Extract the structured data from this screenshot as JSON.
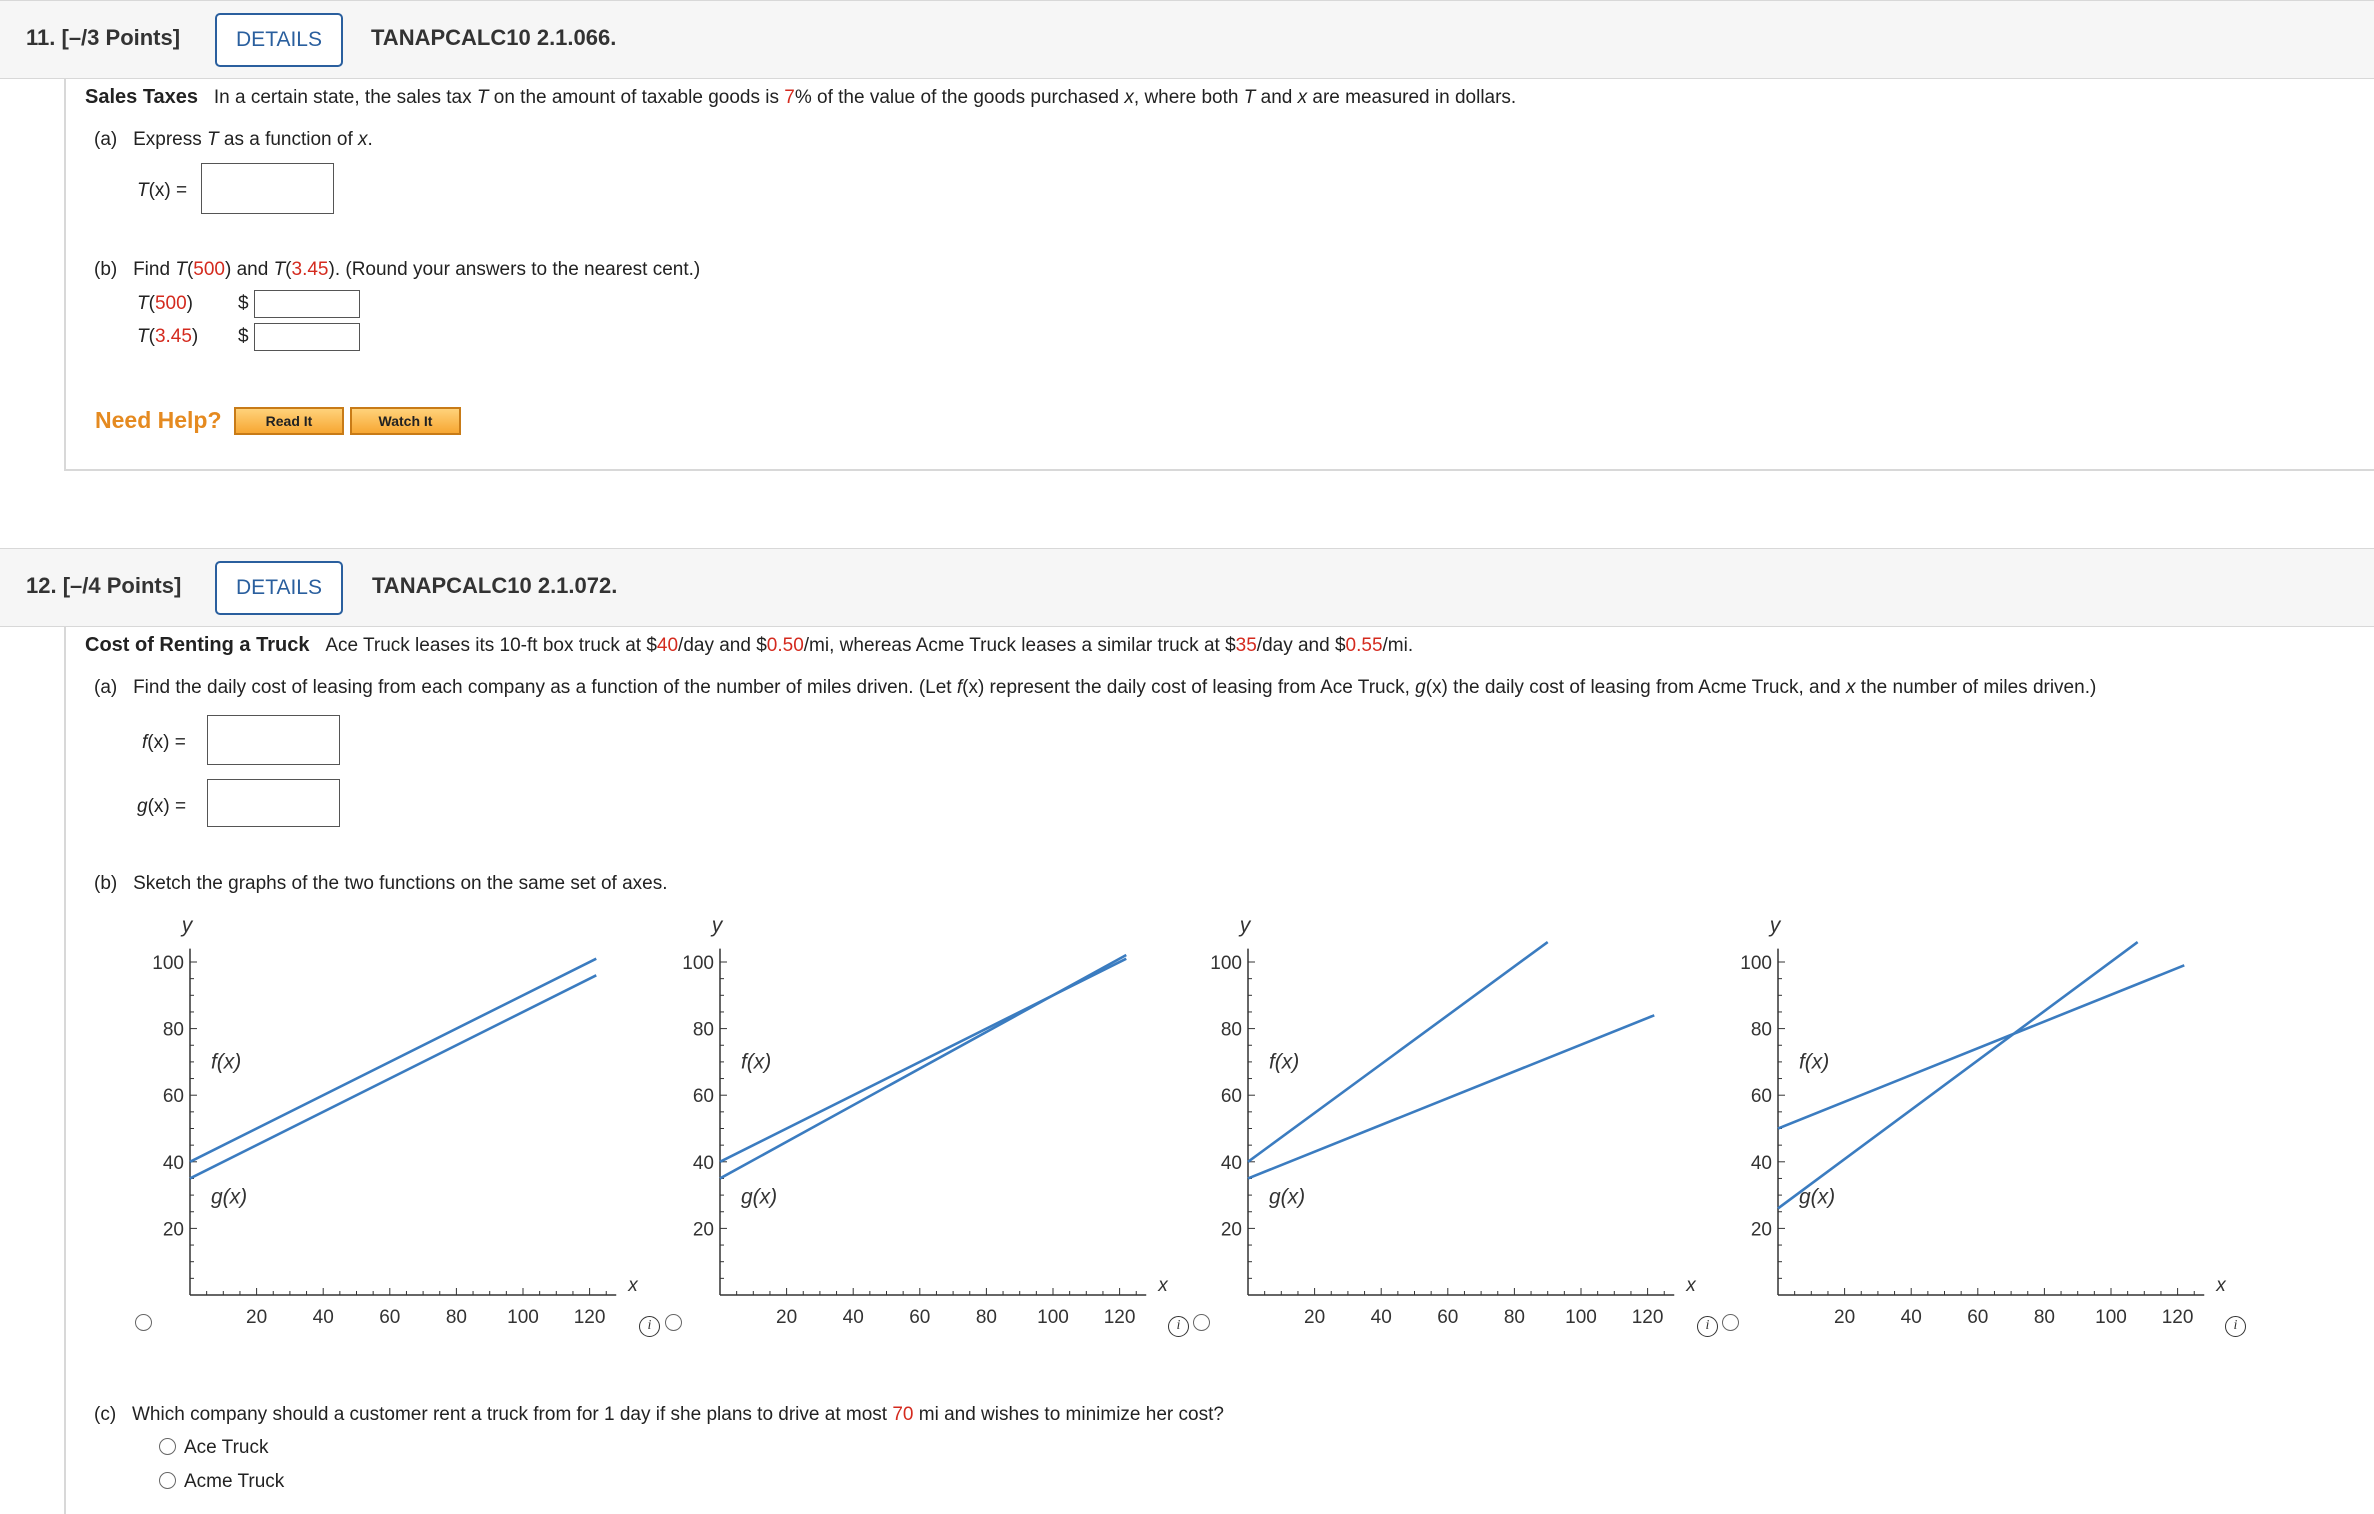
{
  "q11": {
    "number": "11.",
    "points": "[–/3 Points]",
    "details_label": "DETAILS",
    "code": "TANAPCALC10 2.1.066.",
    "title": "Sales Taxes",
    "intro_1": "In a certain state, the sales tax ",
    "intro_T": "T",
    "intro_2": " on the amount of taxable goods is ",
    "intro_pct": "7",
    "intro_3": "% of the value of the goods purchased ",
    "intro_x": "x",
    "intro_4": ", where both ",
    "intro_T2": "T",
    "intro_5": " and ",
    "intro_x2": "x",
    "intro_6": " are measured in dollars.",
    "part_a": {
      "label": "(a)",
      "text_1": "Express ",
      "text_T": "T",
      "text_2": " as a function of ",
      "text_x": "x",
      "text_3": ".",
      "answer_label_fn": "T",
      "answer_label_rest": "(x) ="
    },
    "part_b": {
      "label": "(b)",
      "text_1": "Find ",
      "fn1": "T",
      "paren1": "(",
      "val1": "500",
      "close1": ")",
      "text_and": " and ",
      "fn2": "T",
      "paren2": "(",
      "val2": "3.45",
      "close2": ")",
      "text_round": ". (Round your answers to the nearest cent.)",
      "rows": [
        {
          "fn": "T",
          "open": "(",
          "val": "500",
          "close": ")",
          "currency": "$"
        },
        {
          "fn": "T",
          "open": "(",
          "val": "3.45",
          "close": ")",
          "currency": "$"
        }
      ]
    },
    "need_help": "Need Help?",
    "read_it": "Read It",
    "watch_it": "Watch It"
  },
  "q12": {
    "number": "12.",
    "points": "[–/4 Points]",
    "details_label": "DETAILS",
    "code": "TANAPCALC10 2.1.072.",
    "title": "Cost of Renting a Truck",
    "intro_1": "Ace Truck leases its 10-ft box truck at $",
    "v1": "40",
    "intro_2": "/day and $",
    "v2": "0.50",
    "intro_3": "/mi, whereas Acme Truck leases a similar truck at $",
    "v3": "35",
    "intro_4": "/day and $",
    "v4": "0.55",
    "intro_5": "/mi.",
    "part_a": {
      "label": "(a)",
      "t1": "Find the daily cost of leasing from each company as a function of the number of miles driven. (Let ",
      "f": "f",
      "t2": "(x) represent the daily cost of leasing from Ace Truck, ",
      "g": "g",
      "t3": "(x) the daily cost of leasing from Acme Truck, and ",
      "x": "x",
      "t4": " the number of miles driven.)",
      "f_label_fn": "f",
      "f_label_rest": "(x) =",
      "g_label_fn": "g",
      "g_label_rest": "(x) ="
    },
    "part_b": {
      "label": "(b)",
      "text": "Sketch the graphs of the two functions on the same set of axes."
    },
    "part_c": {
      "label": "(c)",
      "t1": "Which company should a customer rent a truck from for 1 day if she plans to drive at most ",
      "miles": "70",
      "t2": " mi and wishes to minimize her cost?",
      "options": [
        "Ace Truck",
        "Acme Truck"
      ]
    },
    "info_glyph": "i"
  },
  "chart_data": [
    {
      "type": "line",
      "xlabel": "x",
      "ylabel": "y",
      "xlim": [
        0,
        128
      ],
      "ylim": [
        0,
        100
      ],
      "x_ticks": [
        20,
        40,
        60,
        80,
        100,
        120
      ],
      "y_ticks": [
        20,
        40,
        60,
        80,
        100
      ],
      "series": [
        {
          "name": "f(x)",
          "points": [
            [
              0,
              40
            ],
            [
              122,
              101
            ]
          ]
        },
        {
          "name": "g(x)",
          "points": [
            [
              0,
              35
            ],
            [
              122,
              96
            ]
          ]
        }
      ],
      "label_f": "f(x)",
      "label_g": "g(x)",
      "line_color": "#3b7cc0"
    },
    {
      "type": "line",
      "xlabel": "x",
      "ylabel": "y",
      "xlim": [
        0,
        128
      ],
      "ylim": [
        0,
        100
      ],
      "x_ticks": [
        20,
        40,
        60,
        80,
        100,
        120
      ],
      "y_ticks": [
        20,
        40,
        60,
        80,
        100
      ],
      "series": [
        {
          "name": "f(x)",
          "points": [
            [
              0,
              40
            ],
            [
              122,
              101
            ]
          ]
        },
        {
          "name": "g(x)",
          "points": [
            [
              0,
              35
            ],
            [
              122,
              102.1
            ]
          ]
        }
      ],
      "label_f": "f(x)",
      "label_g": "g(x)",
      "line_color": "#3b7cc0"
    },
    {
      "type": "line",
      "xlabel": "x",
      "ylabel": "y",
      "xlim": [
        0,
        128
      ],
      "ylim": [
        0,
        100
      ],
      "x_ticks": [
        20,
        40,
        60,
        80,
        100,
        120
      ],
      "y_ticks": [
        20,
        40,
        60,
        80,
        100
      ],
      "series": [
        {
          "name": "f(x)",
          "points": [
            [
              0,
              40
            ],
            [
              90,
              106
            ]
          ]
        },
        {
          "name": "g(x)",
          "points": [
            [
              0,
              35
            ],
            [
              122,
              84
            ]
          ]
        }
      ],
      "label_f": "f(x)",
      "label_g": "g(x)",
      "line_color": "#3b7cc0"
    },
    {
      "type": "line",
      "xlabel": "x",
      "ylabel": "y",
      "xlim": [
        0,
        128
      ],
      "ylim": [
        0,
        100
      ],
      "x_ticks": [
        20,
        40,
        60,
        80,
        100,
        120
      ],
      "y_ticks": [
        20,
        40,
        60,
        80,
        100
      ],
      "series": [
        {
          "name": "f(x)",
          "points": [
            [
              0,
              50
            ],
            [
              122,
              99
            ]
          ]
        },
        {
          "name": "g(x)",
          "points": [
            [
              0,
              26
            ],
            [
              108,
              106
            ]
          ]
        }
      ],
      "label_f": "f(x)",
      "label_g": "g(x)",
      "line_color": "#3b7cc0"
    }
  ]
}
